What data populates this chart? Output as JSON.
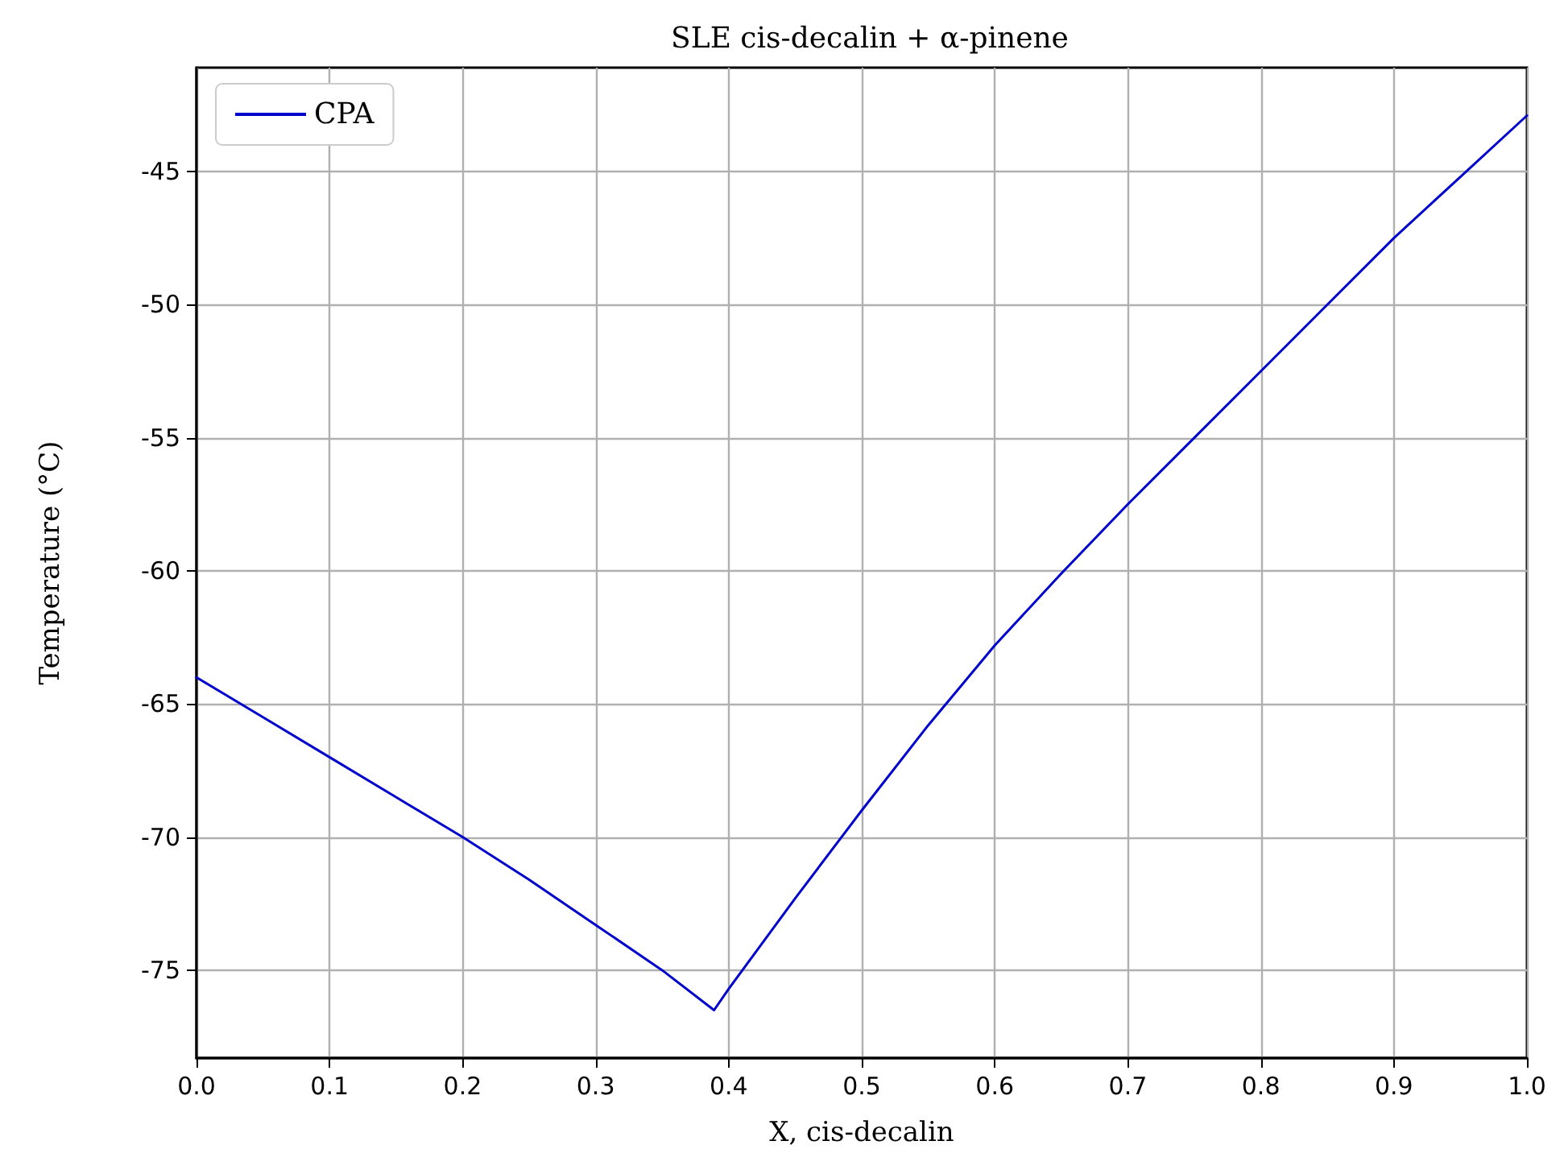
{
  "chart_data": {
    "type": "line",
    "title": "SLE cis-decalin + α-pinene",
    "xlabel": "X, cis-decalin",
    "ylabel": "Temperature (°C)",
    "x": [
      0,
      0.05,
      0.1,
      0.15,
      0.2,
      0.25,
      0.3,
      0.35,
      0.389,
      0.4,
      0.45,
      0.5,
      0.55,
      0.6,
      0.65,
      0.7,
      0.75,
      0.8,
      0.85,
      0.9,
      0.95,
      1.0
    ],
    "series": [
      {
        "name": "CPA",
        "color": "#0000cc",
        "values": [
          -64.0,
          -65.5,
          -67.0,
          -68.5,
          -70.0,
          -71.6,
          -73.3,
          -75.0,
          -76.5,
          -75.7,
          -72.3,
          -69.0,
          -65.8,
          -62.8,
          -60.1,
          -57.5,
          -55.0,
          -52.5,
          -50.0,
          -47.5,
          -45.2,
          -42.9
        ]
      }
    ],
    "xlim": [
      0,
      1
    ],
    "xticks": [
      {
        "value": 0,
        "label": "0.0"
      },
      0.1,
      0.2,
      0.3,
      0.4,
      0.5,
      0.6,
      0.7,
      0.8,
      0.9,
      {
        "value": 1,
        "label": "1.0"
      }
    ],
    "ylim": [
      -78.3,
      -41.1
    ],
    "yticks": [
      -75,
      -70,
      -65,
      -60,
      -55,
      -50,
      -45
    ],
    "grid": true,
    "legend": "top left",
    "marker": "none",
    "line_style": "solid"
  }
}
